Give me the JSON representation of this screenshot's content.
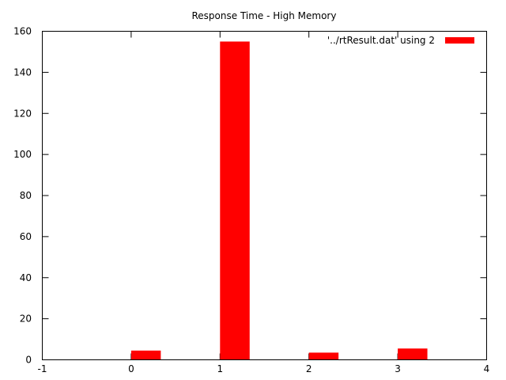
{
  "chart_data": {
    "type": "bar",
    "title": "Response Time - High Memory",
    "xlabel": "",
    "ylabel": "",
    "xlim": [
      -1,
      4
    ],
    "ylim": [
      0,
      160
    ],
    "x_ticks": [
      "-1",
      "0",
      "1",
      "2",
      "3",
      "4"
    ],
    "y_ticks": [
      "0",
      "20",
      "40",
      "60",
      "80",
      "100",
      "120",
      "140",
      "160"
    ],
    "grid": false,
    "legend_position": "top-right",
    "series": [
      {
        "name": "'../rtResult.dat' using 2",
        "color": "#ff0000",
        "x": [
          0,
          1,
          2,
          3
        ],
        "values": [
          4.5,
          155,
          3.5,
          5.5
        ]
      }
    ]
  }
}
